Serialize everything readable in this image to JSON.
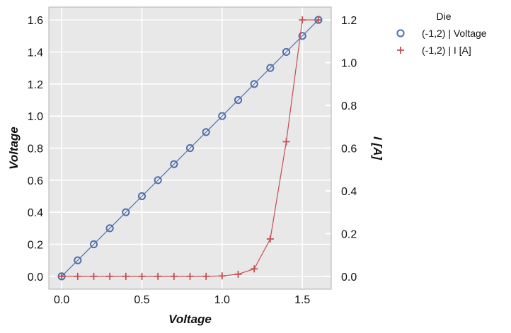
{
  "chart_data": {
    "type": "line",
    "xlabel": "Voltage",
    "ylabel": "Voltage",
    "y2label": "I [A]",
    "xlim": [
      -0.08,
      1.68
    ],
    "ylim": [
      -0.08,
      1.68
    ],
    "y2lim": [
      -0.06,
      1.26
    ],
    "xticks": [
      0.0,
      0.5,
      1.0,
      1.5
    ],
    "yticks": [
      0.0,
      0.2,
      0.4,
      0.6,
      0.8,
      1.0,
      1.2,
      1.4,
      1.6
    ],
    "y2ticks": [
      0.0,
      0.2,
      0.4,
      0.6,
      0.8,
      1.0,
      1.2
    ],
    "grid": true,
    "legend": {
      "title": "Die",
      "placement": "outside-top-right",
      "entries": [
        "(-1,2) | Voltage",
        "(-1,2) | I [A]"
      ]
    },
    "series": [
      {
        "name": "(-1,2) | Voltage",
        "axis": "left",
        "marker": "circle",
        "color": "#4c72b0",
        "x": [
          0.0,
          0.1,
          0.2,
          0.3,
          0.4,
          0.5,
          0.6,
          0.7,
          0.8,
          0.9,
          1.0,
          1.1,
          1.2,
          1.3,
          1.4,
          1.5,
          1.6
        ],
        "y": [
          0.0,
          0.1,
          0.2,
          0.3,
          0.4,
          0.5,
          0.6,
          0.7,
          0.8,
          0.9,
          1.0,
          1.1,
          1.2,
          1.3,
          1.4,
          1.5,
          1.6
        ]
      },
      {
        "name": "(-1,2) | I [A]",
        "axis": "right",
        "marker": "plus",
        "color": "#c44e52",
        "x": [
          0.0,
          0.1,
          0.2,
          0.3,
          0.4,
          0.5,
          0.6,
          0.7,
          0.8,
          0.9,
          1.0,
          1.1,
          1.2,
          1.3,
          1.4,
          1.5,
          1.6
        ],
        "y": [
          0.0,
          0.0,
          0.0,
          0.0,
          0.0,
          0.0,
          0.0,
          0.0,
          0.0,
          0.0,
          0.002,
          0.01,
          0.035,
          0.175,
          0.63,
          1.2,
          1.2
        ]
      }
    ]
  }
}
